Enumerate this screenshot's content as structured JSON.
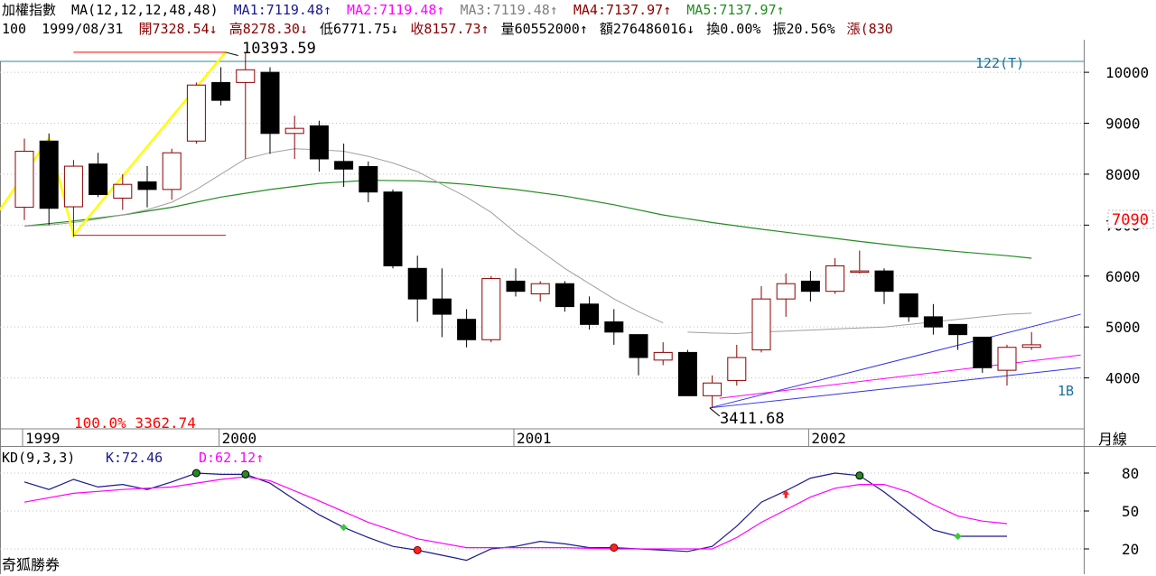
{
  "header": {
    "title": "加權指數",
    "ma_params": "MA(12,12,12,48,48)",
    "ma1": "MA1:7119.48↑",
    "ma2": "MA2:7119.48↑",
    "ma3": "MA3:7119.48↑",
    "ma4": "MA4:7137.97↑",
    "ma5": "MA5:7137.97↑"
  },
  "info_bar": {
    "index": "100",
    "date": "1999/08/31",
    "open": "開7328.54↓",
    "high": "高8278.30↓",
    "low": "低6771.75↓",
    "close": "收8157.73↑",
    "volume": "量60552000↑",
    "amount": "額276486016↓",
    "turnover": "換0.00%",
    "amplitude": "振20.56%",
    "change": "漲(830"
  },
  "colors": {
    "up": "#8b0000",
    "down": "#000000",
    "ma_short": "#a0a0a0",
    "ma_long": "#228b22",
    "k_line": "#1a1a8c",
    "d_line": "#ff00ff",
    "wave": "#ffff00",
    "trend_blue": "#3333dd",
    "trend_pink": "#ff00ff",
    "ref_line": "#ff0000",
    "top_line": "#2e8b8b",
    "label_blue": "#1e6e9a",
    "price_tag": "#ff0000",
    "grid": "#c0c0c0"
  },
  "footer": {
    "brand": "奇狐勝券"
  },
  "chart_data": [
    {
      "type": "candlestick",
      "period_label": "月線",
      "x_labels": [
        {
          "i": 0,
          "label": "1999"
        },
        {
          "i": 8,
          "label": "2000"
        },
        {
          "i": 20,
          "label": "2001"
        },
        {
          "i": 32,
          "label": "2002"
        }
      ],
      "yticks": [
        4000,
        5000,
        6000,
        7000,
        8000,
        9000,
        10000
      ],
      "ylim": [
        3000,
        10640
      ],
      "current_price": "7090",
      "annotations": {
        "high_label": "10393.59",
        "low_label": "3411.68",
        "fib_label": "100.0% 3362.74",
        "wave_count": "122(T)",
        "wave_label": "1B"
      },
      "candles": [
        {
          "o": 7350,
          "h": 8700,
          "l": 7100,
          "c": 8450
        },
        {
          "o": 8650,
          "h": 8800,
          "l": 7000,
          "c": 7330
        },
        {
          "o": 7360,
          "h": 8278,
          "l": 6771,
          "c": 8157
        },
        {
          "o": 8200,
          "h": 8420,
          "l": 7550,
          "c": 7600
        },
        {
          "o": 7530,
          "h": 8000,
          "l": 7300,
          "c": 7800
        },
        {
          "o": 7850,
          "h": 8160,
          "l": 7350,
          "c": 7700
        },
        {
          "o": 7700,
          "h": 8500,
          "l": 7500,
          "c": 8420
        },
        {
          "o": 8650,
          "h": 9800,
          "l": 8600,
          "c": 9750
        },
        {
          "o": 9800,
          "h": 10100,
          "l": 9350,
          "c": 9450
        },
        {
          "o": 9800,
          "h": 10393,
          "l": 8300,
          "c": 10050
        },
        {
          "o": 10000,
          "h": 10100,
          "l": 8400,
          "c": 8800
        },
        {
          "o": 8800,
          "h": 9150,
          "l": 8300,
          "c": 8900
        },
        {
          "o": 8950,
          "h": 9050,
          "l": 8050,
          "c": 8300
        },
        {
          "o": 8250,
          "h": 8600,
          "l": 7750,
          "c": 8100
        },
        {
          "o": 8150,
          "h": 8250,
          "l": 7450,
          "c": 7650
        },
        {
          "o": 7650,
          "h": 7700,
          "l": 6150,
          "c": 6200
        },
        {
          "o": 6150,
          "h": 6400,
          "l": 5100,
          "c": 5550
        },
        {
          "o": 5550,
          "h": 6150,
          "l": 4800,
          "c": 5250
        },
        {
          "o": 5150,
          "h": 5350,
          "l": 4600,
          "c": 4750
        },
        {
          "o": 4750,
          "h": 6000,
          "l": 4700,
          "c": 5950
        },
        {
          "o": 5900,
          "h": 6150,
          "l": 5600,
          "c": 5700
        },
        {
          "o": 5650,
          "h": 5900,
          "l": 5500,
          "c": 5850
        },
        {
          "o": 5850,
          "h": 5900,
          "l": 5300,
          "c": 5400
        },
        {
          "o": 5450,
          "h": 5600,
          "l": 4950,
          "c": 5050
        },
        {
          "o": 5100,
          "h": 5350,
          "l": 4650,
          "c": 4900
        },
        {
          "o": 4850,
          "h": 4850,
          "l": 4050,
          "c": 4400
        },
        {
          "o": 4350,
          "h": 4700,
          "l": 4250,
          "c": 4500
        },
        {
          "o": 4500,
          "h": 4550,
          "l": 3650,
          "c": 3650
        },
        {
          "o": 3650,
          "h": 4050,
          "l": 3411,
          "c": 3900
        },
        {
          "o": 3950,
          "h": 4650,
          "l": 3850,
          "c": 4400
        },
        {
          "o": 4550,
          "h": 5800,
          "l": 4500,
          "c": 5550
        },
        {
          "o": 5550,
          "h": 6050,
          "l": 5200,
          "c": 5850
        },
        {
          "o": 5900,
          "h": 6100,
          "l": 5500,
          "c": 5700
        },
        {
          "o": 5700,
          "h": 6350,
          "l": 5650,
          "c": 6200
        },
        {
          "o": 6100,
          "h": 6500,
          "l": 6050,
          "c": 6100
        },
        {
          "o": 6100,
          "h": 6150,
          "l": 5450,
          "c": 5700
        },
        {
          "o": 5650,
          "h": 5650,
          "l": 5100,
          "c": 5200
        },
        {
          "o": 5200,
          "h": 5450,
          "l": 4850,
          "c": 5000
        },
        {
          "o": 5050,
          "h": 5050,
          "l": 4550,
          "c": 4850
        },
        {
          "o": 4800,
          "h": 4800,
          "l": 4100,
          "c": 4200
        },
        {
          "o": 4150,
          "h": 4650,
          "l": 3850,
          "c": 4600
        },
        {
          "o": 4600,
          "h": 4900,
          "l": 4550,
          "c": 4650
        }
      ],
      "ma_short": [
        {
          "i": 27,
          "v": 4900
        },
        {
          "i": 28,
          "v": 4880
        },
        {
          "i": 29,
          "v": 4870
        },
        {
          "i": 30,
          "v": 4900
        },
        {
          "i": 31,
          "v": 4920
        },
        {
          "i": 32,
          "v": 4940
        },
        {
          "i": 33,
          "v": 4960
        },
        {
          "i": 34,
          "v": 4980
        },
        {
          "i": 35,
          "v": 5000
        },
        {
          "i": 36,
          "v": 5050
        },
        {
          "i": 37,
          "v": 5100
        },
        {
          "i": 38,
          "v": 5150
        },
        {
          "i": 39,
          "v": 5200
        },
        {
          "i": 40,
          "v": 5250
        },
        {
          "i": 41,
          "v": 5270
        }
      ],
      "ma_short_early": [
        {
          "i": 0,
          "v": 6980
        },
        {
          "i": 1,
          "v": 7000
        },
        {
          "i": 2,
          "v": 7050
        },
        {
          "i": 3,
          "v": 7120
        },
        {
          "i": 4,
          "v": 7200
        },
        {
          "i": 5,
          "v": 7300
        },
        {
          "i": 6,
          "v": 7450
        },
        {
          "i": 7,
          "v": 7700
        },
        {
          "i": 8,
          "v": 8000
        },
        {
          "i": 9,
          "v": 8300
        },
        {
          "i": 10,
          "v": 8420
        },
        {
          "i": 11,
          "v": 8500
        },
        {
          "i": 12,
          "v": 8480
        },
        {
          "i": 13,
          "v": 8450
        },
        {
          "i": 14,
          "v": 8350
        },
        {
          "i": 15,
          "v": 8220
        },
        {
          "i": 16,
          "v": 8050
        },
        {
          "i": 17,
          "v": 7800
        },
        {
          "i": 18,
          "v": 7550
        },
        {
          "i": 19,
          "v": 7250
        },
        {
          "i": 20,
          "v": 6850
        },
        {
          "i": 21,
          "v": 6500
        },
        {
          "i": 22,
          "v": 6150
        },
        {
          "i": 23,
          "v": 5850
        },
        {
          "i": 24,
          "v": 5550
        },
        {
          "i": 25,
          "v": 5300
        },
        {
          "i": 26,
          "v": 5080
        }
      ],
      "ma_long": [
        {
          "i": 0,
          "v": 6980
        },
        {
          "i": 2,
          "v": 7080
        },
        {
          "i": 4,
          "v": 7200
        },
        {
          "i": 6,
          "v": 7350
        },
        {
          "i": 8,
          "v": 7550
        },
        {
          "i": 10,
          "v": 7700
        },
        {
          "i": 12,
          "v": 7820
        },
        {
          "i": 14,
          "v": 7880
        },
        {
          "i": 16,
          "v": 7870
        },
        {
          "i": 18,
          "v": 7800
        },
        {
          "i": 20,
          "v": 7700
        },
        {
          "i": 22,
          "v": 7570
        },
        {
          "i": 24,
          "v": 7400
        },
        {
          "i": 26,
          "v": 7200
        },
        {
          "i": 28,
          "v": 7050
        },
        {
          "i": 30,
          "v": 6920
        },
        {
          "i": 32,
          "v": 6800
        },
        {
          "i": 34,
          "v": 6680
        },
        {
          "i": 36,
          "v": 6570
        },
        {
          "i": 38,
          "v": 6480
        },
        {
          "i": 40,
          "v": 6400
        },
        {
          "i": 41,
          "v": 6350
        }
      ]
    },
    {
      "type": "line",
      "title": "KD(9,3,3)",
      "k_label": "K:72.46",
      "d_label": "D:62.12↑",
      "yticks": [
        20,
        50,
        80
      ],
      "ylim": [
        0,
        100
      ],
      "series": [
        {
          "name": "K",
          "points": [
            {
              "i": 0,
              "v": 73
            },
            {
              "i": 1,
              "v": 67
            },
            {
              "i": 2,
              "v": 75
            },
            {
              "i": 3,
              "v": 69
            },
            {
              "i": 4,
              "v": 71
            },
            {
              "i": 5,
              "v": 67
            },
            {
              "i": 6,
              "v": 73
            },
            {
              "i": 7,
              "v": 80
            },
            {
              "i": 8,
              "v": 79
            },
            {
              "i": 9,
              "v": 79
            },
            {
              "i": 10,
              "v": 72
            },
            {
              "i": 11,
              "v": 59
            },
            {
              "i": 12,
              "v": 47
            },
            {
              "i": 13,
              "v": 37
            },
            {
              "i": 14,
              "v": 29
            },
            {
              "i": 15,
              "v": 22
            },
            {
              "i": 16,
              "v": 19
            },
            {
              "i": 17,
              "v": 15
            },
            {
              "i": 18,
              "v": 11
            },
            {
              "i": 19,
              "v": 20
            },
            {
              "i": 20,
              "v": 22
            },
            {
              "i": 21,
              "v": 26
            },
            {
              "i": 22,
              "v": 24
            },
            {
              "i": 23,
              "v": 21
            },
            {
              "i": 24,
              "v": 21
            },
            {
              "i": 25,
              "v": 20
            },
            {
              "i": 26,
              "v": 19
            },
            {
              "i": 27,
              "v": 18
            },
            {
              "i": 28,
              "v": 22
            },
            {
              "i": 29,
              "v": 38
            },
            {
              "i": 30,
              "v": 57
            },
            {
              "i": 31,
              "v": 66
            },
            {
              "i": 32,
              "v": 76
            },
            {
              "i": 33,
              "v": 80
            },
            {
              "i": 34,
              "v": 78
            },
            {
              "i": 35,
              "v": 65
            },
            {
              "i": 36,
              "v": 50
            },
            {
              "i": 37,
              "v": 35
            },
            {
              "i": 38,
              "v": 30
            },
            {
              "i": 39,
              "v": 30
            },
            {
              "i": 40,
              "v": 30
            }
          ]
        },
        {
          "name": "D",
          "points": [
            {
              "i": 0,
              "v": 57
            },
            {
              "i": 2,
              "v": 64
            },
            {
              "i": 4,
              "v": 67
            },
            {
              "i": 6,
              "v": 69
            },
            {
              "i": 8,
              "v": 75
            },
            {
              "i": 9,
              "v": 77
            },
            {
              "i": 10,
              "v": 74
            },
            {
              "i": 12,
              "v": 58
            },
            {
              "i": 14,
              "v": 41
            },
            {
              "i": 16,
              "v": 28
            },
            {
              "i": 18,
              "v": 21
            },
            {
              "i": 20,
              "v": 21
            },
            {
              "i": 22,
              "v": 21
            },
            {
              "i": 24,
              "v": 20
            },
            {
              "i": 26,
              "v": 20
            },
            {
              "i": 28,
              "v": 20
            },
            {
              "i": 29,
              "v": 29
            },
            {
              "i": 30,
              "v": 41
            },
            {
              "i": 31,
              "v": 51
            },
            {
              "i": 32,
              "v": 61
            },
            {
              "i": 33,
              "v": 68
            },
            {
              "i": 34,
              "v": 71
            },
            {
              "i": 35,
              "v": 71
            },
            {
              "i": 36,
              "v": 65
            },
            {
              "i": 37,
              "v": 55
            },
            {
              "i": 38,
              "v": 46
            },
            {
              "i": 39,
              "v": 42
            },
            {
              "i": 40,
              "v": 40
            }
          ]
        }
      ],
      "signals": [
        {
          "i": 7,
          "v": 80,
          "kind": "green-dot"
        },
        {
          "i": 9,
          "v": 79,
          "kind": "green-dot"
        },
        {
          "i": 13,
          "v": 37,
          "kind": "green-diamond"
        },
        {
          "i": 16,
          "v": 19,
          "kind": "red-dot"
        },
        {
          "i": 24,
          "v": 21,
          "kind": "red-dot"
        },
        {
          "i": 31,
          "v": 63,
          "kind": "red-arrow"
        },
        {
          "i": 34,
          "v": 78,
          "kind": "green-dot"
        },
        {
          "i": 38,
          "v": 30,
          "kind": "green-diamond"
        }
      ]
    }
  ]
}
